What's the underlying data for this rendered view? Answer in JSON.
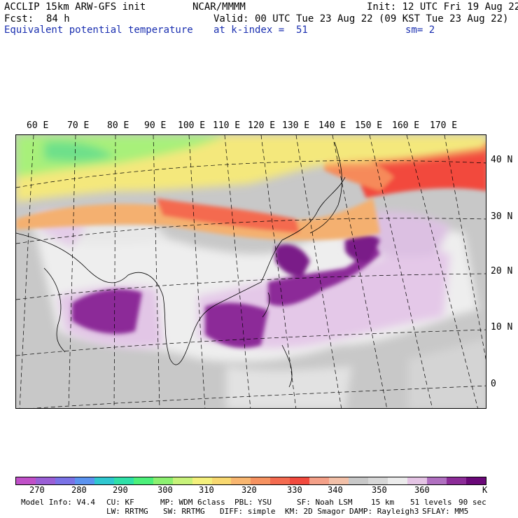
{
  "header": {
    "model": "ACCLIP 15km ARW-GFS init",
    "org": "NCAR/MMMM",
    "init": "Init: 12 UTC Fri 19 Aug 22",
    "fcst_label": "Fcst:",
    "fcst_value": "84 h",
    "valid": "Valid: 00 UTC Tue 23 Aug 22 (09 KST Tue 23 Aug 22)",
    "field": "Equivalent potential temperature",
    "level": "at k-index =  51",
    "smoothing": "sm= 2"
  },
  "map": {
    "lon_labels": [
      "60 E",
      "70 E",
      "80 E",
      "90 E",
      "100 E",
      "110 E",
      "120 E",
      "130 E",
      "140 E",
      "150 E",
      "160 E",
      "170 E"
    ],
    "lat_labels": [
      "40 N",
      "30 N",
      "20 N",
      "10 N",
      "0"
    ]
  },
  "colorbar": {
    "colors": [
      "#c050c8",
      "#9a5fd6",
      "#7a72e6",
      "#5b93f0",
      "#2fc7d0",
      "#2fe0a8",
      "#4cf07a",
      "#8cf070",
      "#c8f27a",
      "#f4f07c",
      "#f8d870",
      "#f8b670",
      "#f69260",
      "#f46b50",
      "#f24a3e",
      "#f4a088",
      "#f2c0a8",
      "#c8c8c8",
      "#d8d8d8",
      "#ececec",
      "#e4c4e4",
      "#b070c0",
      "#8c2c98",
      "#6a0878"
    ],
    "ticks": [
      "270",
      "280",
      "290",
      "300",
      "310",
      "320",
      "330",
      "340",
      "350",
      "360"
    ],
    "unit": "K"
  },
  "footer": {
    "line1": [
      "Model Info: V4.4",
      "CU: KF",
      "MP: WDM 6class",
      "PBL: YSU",
      "SF: Noah LSM",
      "15 km",
      "51 levels",
      "90 sec"
    ],
    "line2": [
      "LW: RRTMG",
      "SW: RRTMG",
      "DIFF: simple",
      "KM: 2D Smagor",
      "DAMP: Rayleigh3",
      "SFLAY: MM5"
    ]
  }
}
